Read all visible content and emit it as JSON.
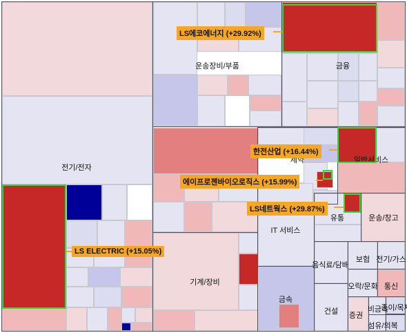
{
  "chart_data": {
    "type": "treemap",
    "colors": {
      "strong_up": "#c62828",
      "light_up": "#f2d9dc",
      "neutral": "#e4e4f2",
      "down": "#000099",
      "highlight_border": "#33dd33",
      "callout_bg": "#f5a623"
    },
    "sectors": [
      "전기/전자",
      "운송장비/부품",
      "금융",
      "제약",
      "일반서비스",
      "유통",
      "운송/창고",
      "IT 서비스",
      "음식료/담배",
      "보험",
      "전기/가스",
      "기계/장비",
      "금속",
      "오락/문화",
      "통신",
      "건설",
      "증권",
      "종이/목재",
      "비금속",
      "섬유/의복"
    ],
    "highlights": [
      {
        "label": "LS ELECTRIC (+15.05%)",
        "change_pct": 15.05
      },
      {
        "label": "LS에코에너지 (+29.92%)",
        "change_pct": 29.92
      },
      {
        "label": "한전산업 (+16.44%)",
        "change_pct": 16.44
      },
      {
        "label": "에이프로젠바이오로직스 (+15.99%)",
        "change_pct": 15.99
      },
      {
        "label": "LS네트웍스 (+29.87%)",
        "change_pct": 29.87
      }
    ]
  }
}
